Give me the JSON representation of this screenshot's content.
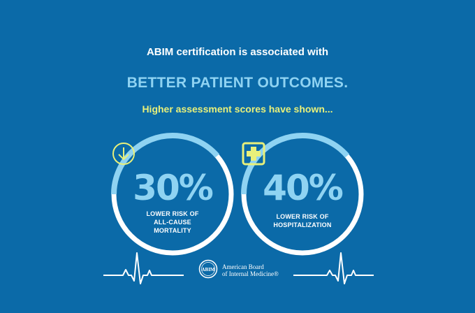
{
  "header": {
    "line1": "ABIM certification is associated with",
    "line2": "BETTER PATIENT OUTCOMES.",
    "line3": "Higher assessment scores have shown..."
  },
  "stats": [
    {
      "value": "30%",
      "label_lines": [
        "LOWER RISK OF",
        "ALL-CAUSE",
        "MORTALITY"
      ],
      "icon": "down-arrow-circle-icon"
    },
    {
      "value": "40%",
      "label_lines": [
        "LOWER RISK OF",
        "HOSPITALIZATION"
      ],
      "icon": "medical-cross-icon"
    }
  ],
  "footer": {
    "logo_text_line1": "American Board",
    "logo_text_line2": "of Internal Medicine®",
    "seal_text": "ABIM"
  },
  "colors": {
    "background": "#0b6aa8",
    "ring_white": "#ffffff",
    "ring_light_blue": "#8fd3f2",
    "accent_yellow": "#e8f07a",
    "headline_blue": "#8fd3f2"
  }
}
